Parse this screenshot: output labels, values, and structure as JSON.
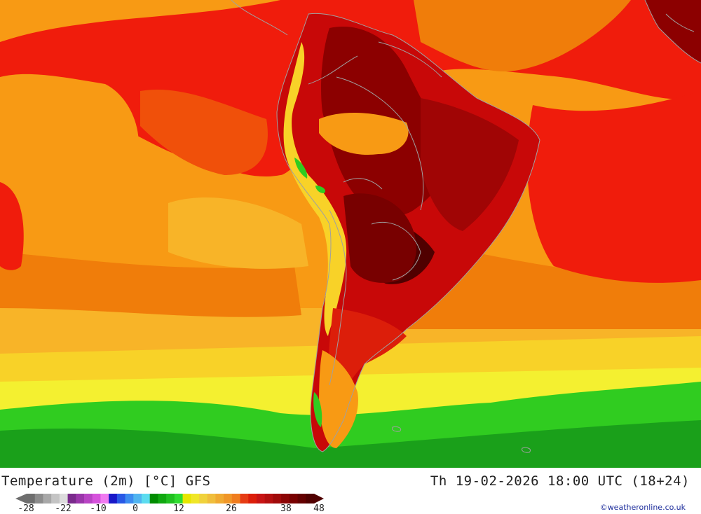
{
  "map": {
    "title": "Temperature (2m) [°C] GFS",
    "valid_time": "Th 19-02-2026 18:00 UTC (18+24)",
    "credit": "©weatheronline.co.uk",
    "region": "South America",
    "variable": "2 m air temperature",
    "units": "°C"
  },
  "legend": {
    "tick_labels": [
      "-28",
      "-22",
      "-10",
      "0",
      "12",
      "26",
      "38",
      "48"
    ],
    "colors": [
      "#6e6e6e",
      "#8c8c8c",
      "#a8a8a8",
      "#c4c4c4",
      "#dcdcdc",
      "#7a2a8c",
      "#9a36aa",
      "#b844c4",
      "#d652dc",
      "#f07af0",
      "#1818c8",
      "#2858e6",
      "#3c8cf0",
      "#50b4f0",
      "#5cdcf0",
      "#008c00",
      "#10a810",
      "#20c020",
      "#30dc30",
      "#e6e600",
      "#f0e628",
      "#f0d23c",
      "#f0be3c",
      "#f0aa32",
      "#f09628",
      "#f07d1e",
      "#e63c14",
      "#dc1e0a",
      "#c81414",
      "#b40f0f",
      "#a00a0a",
      "#8c0505",
      "#780000",
      "#640000",
      "#500000"
    ]
  },
  "palette": {
    "green_dark": "#1aa01a",
    "green": "#30cc20",
    "yellow": "#f4f030",
    "yellow_orange": "#f8d228",
    "orange_light": "#f8b428",
    "orange": "#f89a14",
    "orange_dark": "#f07d0a",
    "red_orange": "#f0500a",
    "red": "#f01c0c",
    "red_dark": "#d20a0a",
    "crimson": "#b40505",
    "maroon": "#8c0000",
    "maroon_dark": "#640000",
    "border": "#a0a0a0"
  }
}
